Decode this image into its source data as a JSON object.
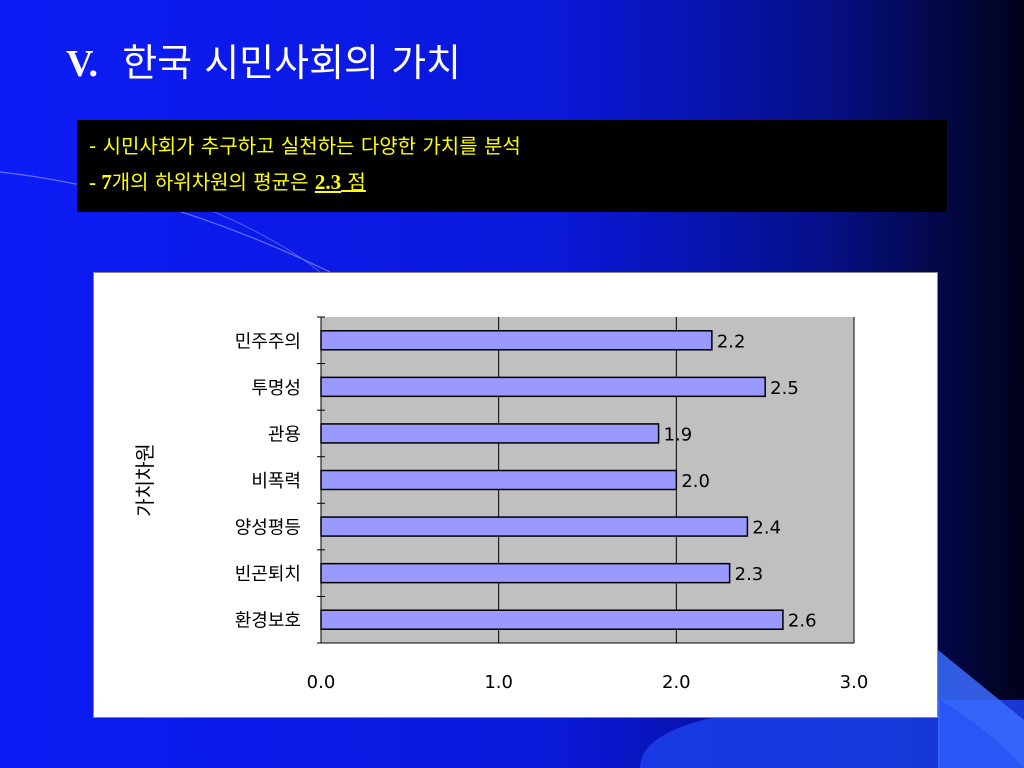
{
  "slide": {
    "title_prefix": "V.",
    "title_text": "한국 시민사회의 가치",
    "sub_lines": [
      {
        "text": "- 시민사회가 추구하고 실천하는 다양한 가치를 분석"
      },
      {
        "lead": "- 7",
        "middle": "개의 하위차원의 평균은 ",
        "value": "2.3",
        "unit": " 점"
      }
    ]
  },
  "colors": {
    "background": "#0c1cf6",
    "subtitle_text": "#ffff00",
    "subtitle_box": "#000000",
    "plot_area": "#c0c0c0",
    "bar_fill": "#9999ff",
    "bar_stroke": "#000000"
  },
  "chart_data": {
    "type": "bar",
    "orientation": "horizontal",
    "categories": [
      "민주주의",
      "투명성",
      "관용",
      "비폭력",
      "양성평등",
      "빈곤퇴치",
      "환경보호"
    ],
    "values": [
      2.2,
      2.5,
      1.9,
      2.0,
      2.4,
      2.3,
      2.6
    ],
    "data_labels": [
      "2.2",
      "2.5",
      "1.9",
      "2.0",
      "2.4",
      "2.3",
      "2.6"
    ],
    "xlim": [
      0,
      3
    ],
    "xticks": [
      "0.0",
      "1.0",
      "2.0",
      "3.0"
    ],
    "ylabel": "가치차원",
    "grid": true,
    "legend": false
  }
}
